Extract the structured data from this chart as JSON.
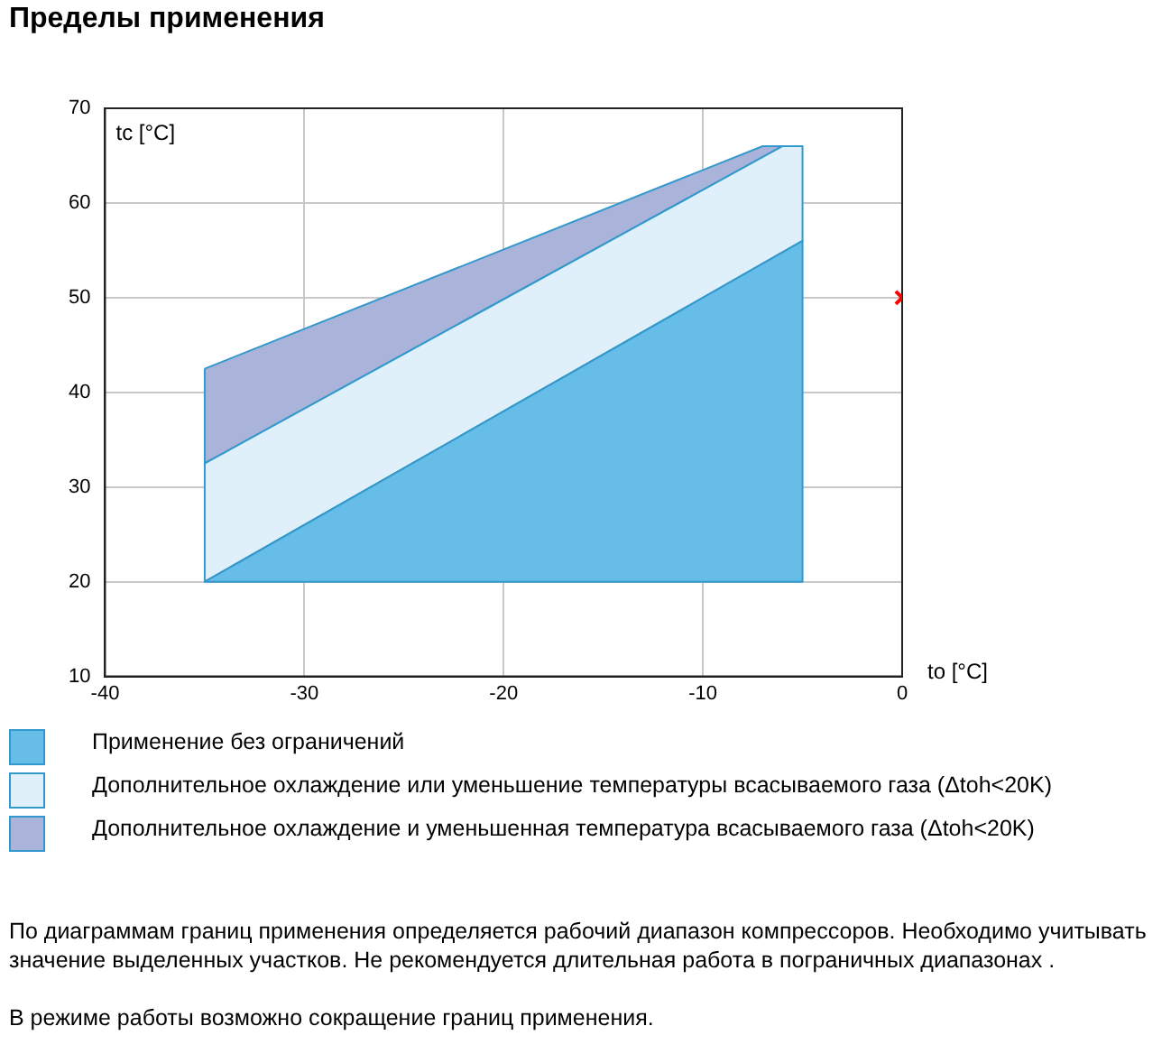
{
  "chart_data": {
    "type": "area",
    "title": "Пределы применения",
    "xlabel": "to [°C]",
    "ylabel": "tc [°C]",
    "xlim": [
      -40,
      0
    ],
    "xticks": [
      -40,
      -30,
      -20,
      -10,
      0
    ],
    "ylim": [
      10,
      70
    ],
    "yticks": [
      10,
      20,
      30,
      40,
      50,
      60,
      70
    ],
    "grid": true,
    "legend": "bottom",
    "series": [
      {
        "name": "Применение без ограничений",
        "color": "#66bde8",
        "x": [
          -35,
          -5,
          -5,
          -35
        ],
        "values": [
          20,
          56,
          20,
          20
        ]
      },
      {
        "name": "Дополнительное охлаждение или уменьшение температуры всасываемого газа (Δtoh<20K)",
        "color": "#dff0fb",
        "x": [
          -35,
          -6,
          -5,
          -5,
          -35,
          -35
        ],
        "values": [
          32.5,
          66,
          66,
          56,
          20,
          32.5
        ]
      },
      {
        "name": "Дополнительное охлаждение и уменьшенная температура всасываемого газа (Δtoh<20K)",
        "color": "#aab3d9",
        "x": [
          -35,
          -7,
          -6,
          -35,
          -35
        ],
        "values": [
          42.5,
          66,
          66,
          32.5,
          42.5
        ]
      },
      {
        "type": "scatter",
        "color": "#ff0000",
        "x": [
          0
        ],
        "values": [
          50
        ],
        "marker": "cross"
      }
    ],
    "annotations": [
      "По диаграммам границ применения определяется рабочий диапазон компрессоров. Необходимо учитывать значение выделенных участков. Не рекомендуется длительная работа в пограничных диапазонах .",
      "В режиме работы возможно сокращение границ применения."
    ]
  }
}
